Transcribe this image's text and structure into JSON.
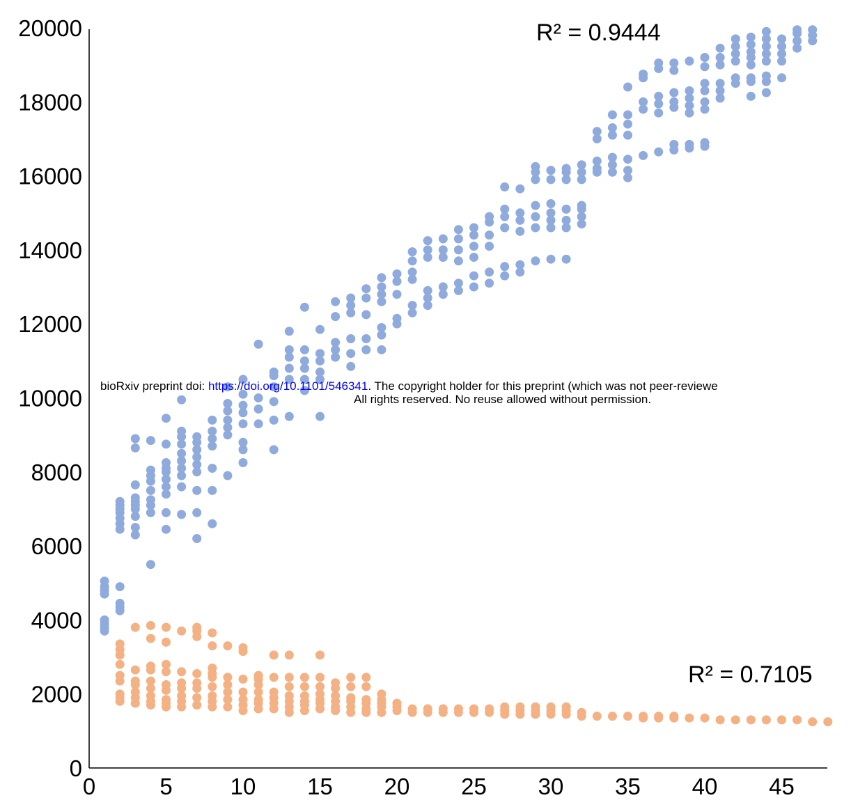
{
  "notice": {
    "prefix": "bioRxiv preprint doi: ",
    "link": "https://doi.org/10.1101/546341",
    "suffix": ". The copyright holder for this preprint (which was not peer-reviewe",
    "line2": "All rights reserved. No reuse allowed without permission."
  },
  "chart_data": {
    "type": "scatter",
    "title": "",
    "xlabel": "",
    "ylabel": "",
    "xlim": [
      0,
      48
    ],
    "ylim": [
      0,
      20000
    ],
    "xticks": [
      0,
      5,
      10,
      15,
      20,
      25,
      30,
      35,
      40,
      45
    ],
    "yticks": [
      0,
      2000,
      4000,
      6000,
      8000,
      10000,
      12000,
      14000,
      16000,
      18000,
      20000
    ],
    "grid": false,
    "annotations": [
      {
        "text": "R² = 0.9444",
        "series": "blue"
      },
      {
        "text": "R² = 0.7105",
        "series": "orange"
      }
    ],
    "series": [
      {
        "color": "#8faadc",
        "points": [
          {
            "x": 1,
            "ys": [
              3700,
              3800,
              3900,
              4000,
              4700,
              4800,
              4900,
              5050
            ]
          },
          {
            "x": 2,
            "ys": [
              4250,
              4350,
              4450,
              4900,
              6450,
              6600,
              6750,
              6900,
              7000,
              7100,
              7200
            ]
          },
          {
            "x": 3,
            "ys": [
              6300,
              6500,
              6800,
              7000,
              7100,
              7200,
              7300,
              7650,
              8650,
              8900
            ]
          },
          {
            "x": 4,
            "ys": [
              5500,
              6900,
              7100,
              7250,
              7500,
              7750,
              7900,
              8050,
              8850
            ]
          },
          {
            "x": 5,
            "ys": [
              6450,
              6900,
              7400,
              7600,
              7800,
              8000,
              8100,
              8250,
              8750,
              9450
            ]
          },
          {
            "x": 6,
            "ys": [
              6850,
              7600,
              7900,
              8100,
              8300,
              8500,
              8750,
              8950,
              9100,
              9950
            ]
          },
          {
            "x": 7,
            "ys": [
              6200,
              6900,
              7500,
              8000,
              8200,
              8400,
              8600,
              8800,
              8950
            ]
          },
          {
            "x": 8,
            "ys": [
              6600,
              7500,
              8100,
              8700,
              8900,
              9100,
              9400
            ]
          },
          {
            "x": 9,
            "ys": [
              7900,
              9000,
              9200,
              9400,
              9650,
              9850,
              10300
            ]
          },
          {
            "x": 10,
            "ys": [
              8250,
              8600,
              8800,
              9300,
              9600,
              9800,
              10100,
              10500
            ]
          },
          {
            "x": 11,
            "ys": [
              9300,
              9700,
              10000,
              11450
            ]
          },
          {
            "x": 12,
            "ys": [
              8600,
              9400,
              9900,
              10300,
              10600,
              10700
            ]
          },
          {
            "x": 13,
            "ys": [
              9500,
              10500,
              10800,
              11100,
              11300,
              11800
            ]
          },
          {
            "x": 14,
            "ys": [
              10200,
              10500,
              10800,
              11000,
              11300,
              12450
            ]
          },
          {
            "x": 15,
            "ys": [
              9500,
              10500,
              10700,
              11000,
              11200,
              11850
            ]
          },
          {
            "x": 16,
            "ys": [
              11100,
              11300,
              11500,
              12200,
              12600
            ]
          },
          {
            "x": 17,
            "ys": [
              10850,
              11200,
              11600,
              12300,
              12500,
              12700
            ]
          },
          {
            "x": 18,
            "ys": [
              11300,
              11600,
              12250,
              12700,
              12950
            ]
          },
          {
            "x": 19,
            "ys": [
              11300,
              11700,
              11900,
              12600,
              12800,
              13000,
              13250
            ]
          },
          {
            "x": 20,
            "ys": [
              12000,
              12150,
              12800,
              13150,
              13350
            ]
          },
          {
            "x": 21,
            "ys": [
              12300,
              12500,
              13200,
              13400,
              13700,
              13950
            ]
          },
          {
            "x": 22,
            "ys": [
              12500,
              12700,
              12900,
              13800,
              14000,
              14250
            ]
          },
          {
            "x": 23,
            "ys": [
              12800,
              13000,
              13800,
              14000,
              14300
            ]
          },
          {
            "x": 24,
            "ys": [
              12900,
              13100,
              13700,
              14000,
              14300,
              14550
            ]
          },
          {
            "x": 25,
            "ys": [
              13000,
              13300,
              13800,
              14100,
              14400,
              14600
            ]
          },
          {
            "x": 26,
            "ys": [
              13100,
              13400,
              14100,
              14400,
              14750,
              14900
            ]
          },
          {
            "x": 27,
            "ys": [
              13300,
              13550,
              14600,
              14900,
              15100,
              15700
            ]
          },
          {
            "x": 28,
            "ys": [
              13400,
              13600,
              14500,
              14800,
              15000,
              15650
            ]
          },
          {
            "x": 29,
            "ys": [
              13700,
              14600,
              14900,
              15200,
              15900,
              16100,
              16250
            ]
          },
          {
            "x": 30,
            "ys": [
              13750,
              14600,
              14800,
              15000,
              15250,
              15900,
              16150
            ]
          },
          {
            "x": 31,
            "ys": [
              13750,
              14600,
              14800,
              15100,
              15900,
              16100,
              16200
            ]
          },
          {
            "x": 32,
            "ys": [
              14700,
              14900,
              15100,
              15200,
              15900,
              16100,
              16300
            ]
          },
          {
            "x": 33,
            "ys": [
              16100,
              16200,
              16400,
              17000,
              17200
            ]
          },
          {
            "x": 34,
            "ys": [
              16100,
              16300,
              16500,
              17100,
              17300,
              17650
            ]
          },
          {
            "x": 35,
            "ys": [
              15950,
              16150,
              16450,
              17100,
              17400,
              17650,
              18400
            ]
          },
          {
            "x": 36,
            "ys": [
              16550,
              17800,
              18000,
              18650,
              18750
            ]
          },
          {
            "x": 37,
            "ys": [
              16650,
              17700,
              17950,
              18150,
              18900,
              19050
            ]
          },
          {
            "x": 38,
            "ys": [
              16700,
              16850,
              17850,
              18000,
              18250,
              18850,
              19050
            ]
          },
          {
            "x": 39,
            "ys": [
              16750,
              16850,
              17700,
              17900,
              18100,
              18300,
              19100
            ]
          },
          {
            "x": 40,
            "ys": [
              16800,
              16900,
              17800,
              18000,
              18300,
              18500,
              18950,
              19200
            ]
          },
          {
            "x": 41,
            "ys": [
              18100,
              18300,
              18500,
              19000,
              19200,
              19450
            ]
          },
          {
            "x": 42,
            "ys": [
              18500,
              18650,
              19100,
              19300,
              19500,
              19700
            ]
          },
          {
            "x": 43,
            "ys": [
              18150,
              18550,
              18650,
              19000,
              19200,
              19350,
              19550,
              19750
            ]
          },
          {
            "x": 44,
            "ys": [
              18250,
              18550,
              18700,
              19100,
              19300,
              19500,
              19700,
              19900
            ]
          },
          {
            "x": 45,
            "ys": [
              18650,
              19100,
              19300,
              19500,
              19700
            ]
          },
          {
            "x": 46,
            "ys": [
              19450,
              19650,
              19850,
              19950
            ]
          },
          {
            "x": 47,
            "ys": [
              19650,
              19800,
              19950
            ]
          }
        ]
      },
      {
        "color": "#f4b183",
        "points": [
          {
            "x": 2,
            "ys": [
              1800,
              1900,
              2000,
              2350,
              2500,
              2800,
              3050,
              3200,
              3350
            ]
          },
          {
            "x": 3,
            "ys": [
              1750,
              1900,
              2050,
              2250,
              2350,
              2650,
              3800
            ]
          },
          {
            "x": 4,
            "ys": [
              1700,
              1800,
              1950,
              2150,
              2350,
              2650,
              2750,
              3500,
              3850
            ]
          },
          {
            "x": 5,
            "ys": [
              1650,
              1750,
              1850,
              2100,
              2250,
              2600,
              2800,
              3400,
              3800
            ]
          },
          {
            "x": 6,
            "ys": [
              1650,
              1800,
              1950,
              2150,
              2300,
              2600,
              3700
            ]
          },
          {
            "x": 7,
            "ys": [
              1700,
              1900,
              2150,
              2300,
              2550,
              3550,
              3700,
              3800
            ]
          },
          {
            "x": 8,
            "ys": [
              1650,
              1800,
              1950,
              2200,
              2450,
              2550,
              2700,
              3300,
              3650
            ]
          },
          {
            "x": 9,
            "ys": [
              1650,
              1850,
              2050,
              2250,
              2450,
              3300
            ]
          },
          {
            "x": 10,
            "ys": [
              1550,
              1700,
              1850,
              2050,
              2400,
              3150,
              3250
            ]
          },
          {
            "x": 11,
            "ys": [
              1600,
              1750,
              1850,
              2050,
              2250,
              2400,
              2500
            ]
          },
          {
            "x": 12,
            "ys": [
              1600,
              1750,
              1900,
              2050,
              2450,
              3050
            ]
          },
          {
            "x": 13,
            "ys": [
              1500,
              1650,
              1800,
              1950,
              2200,
              2450,
              3050
            ]
          },
          {
            "x": 14,
            "ys": [
              1550,
              1700,
              1800,
              1950,
              2200,
              2450
            ]
          },
          {
            "x": 15,
            "ys": [
              1600,
              1750,
              1850,
              2000,
              2200,
              2450,
              3050
            ]
          },
          {
            "x": 16,
            "ys": [
              1550,
              1650,
              1800,
              1950,
              2150,
              2300
            ]
          },
          {
            "x": 17,
            "ys": [
              1500,
              1650,
              1800,
              1900,
              2200,
              2450
            ]
          },
          {
            "x": 18,
            "ys": [
              1500,
              1600,
              1750,
              1850,
              2200,
              2450
            ]
          },
          {
            "x": 19,
            "ys": [
              1500,
              1650,
              1750,
              1850,
              2000
            ]
          },
          {
            "x": 20,
            "ys": [
              1550,
              1650,
              1750
            ]
          },
          {
            "x": 21,
            "ys": [
              1500,
              1600
            ]
          },
          {
            "x": 22,
            "ys": [
              1500,
              1600
            ]
          },
          {
            "x": 23,
            "ys": [
              1500,
              1600
            ]
          },
          {
            "x": 24,
            "ys": [
              1500,
              1600
            ]
          },
          {
            "x": 25,
            "ys": [
              1500,
              1600
            ]
          },
          {
            "x": 26,
            "ys": [
              1500,
              1600
            ]
          },
          {
            "x": 27,
            "ys": [
              1450,
              1550,
              1650
            ]
          },
          {
            "x": 28,
            "ys": [
              1450,
              1550,
              1650
            ]
          },
          {
            "x": 29,
            "ys": [
              1450,
              1550,
              1650
            ]
          },
          {
            "x": 30,
            "ys": [
              1450,
              1550,
              1650
            ]
          },
          {
            "x": 31,
            "ys": [
              1450,
              1550,
              1650
            ]
          },
          {
            "x": 32,
            "ys": [
              1400,
              1500
            ]
          },
          {
            "x": 33,
            "ys": [
              1400
            ]
          },
          {
            "x": 34,
            "ys": [
              1400
            ]
          },
          {
            "x": 35,
            "ys": [
              1400
            ]
          },
          {
            "x": 36,
            "ys": [
              1350,
              1400
            ]
          },
          {
            "x": 37,
            "ys": [
              1350,
              1400
            ]
          },
          {
            "x": 38,
            "ys": [
              1350,
              1400
            ]
          },
          {
            "x": 39,
            "ys": [
              1350
            ]
          },
          {
            "x": 40,
            "ys": [
              1350
            ]
          },
          {
            "x": 41,
            "ys": [
              1300
            ]
          },
          {
            "x": 42,
            "ys": [
              1300
            ]
          },
          {
            "x": 43,
            "ys": [
              1300
            ]
          },
          {
            "x": 44,
            "ys": [
              1300
            ]
          },
          {
            "x": 45,
            "ys": [
              1300
            ]
          },
          {
            "x": 46,
            "ys": [
              1300
            ]
          },
          {
            "x": 47,
            "ys": [
              1250
            ]
          },
          {
            "x": 48,
            "ys": [
              1250
            ]
          }
        ]
      }
    ]
  }
}
